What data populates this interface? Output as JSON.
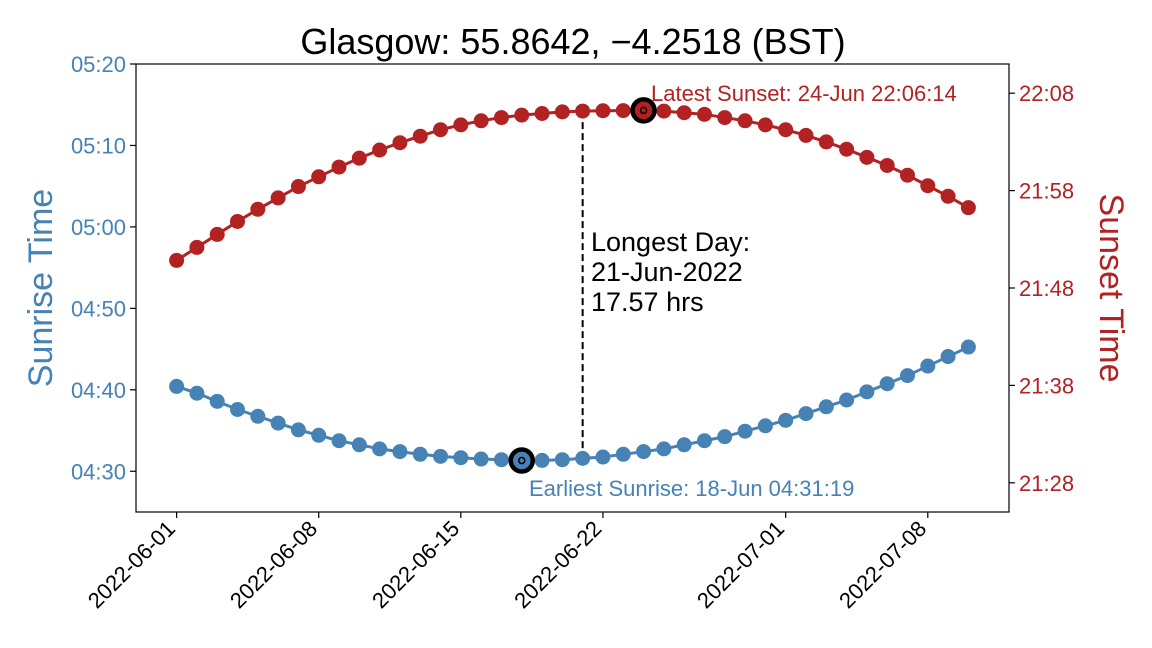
{
  "chart_data": {
    "type": "line",
    "title": "Glasgow: 55.8642, −4.2518 (BST)",
    "ylabel_left": "Sunrise Time",
    "ylabel_right": "Sunset Time",
    "x_ticks": [
      "2022-06-01",
      "2022-06-08",
      "2022-06-15",
      "2022-06-22",
      "2022-07-01",
      "2022-07-08"
    ],
    "y_left_ticks": [
      "04:30",
      "04:40",
      "04:50",
      "05:00",
      "05:10",
      "05:20"
    ],
    "y_right_ticks": [
      "21:28",
      "21:38",
      "21:48",
      "21:58",
      "22:08"
    ],
    "y_left_range": [
      "04:25",
      "05:20"
    ],
    "y_right_range": [
      "21:25",
      "22:11"
    ],
    "x_range": [
      "2022-05-30",
      "2022-07-12"
    ],
    "grid": false,
    "colors": {
      "sunrise": "#4682b4",
      "sunset": "#b22222",
      "text": "#000000"
    },
    "x": [
      "2022-06-01",
      "2022-06-02",
      "2022-06-03",
      "2022-06-04",
      "2022-06-05",
      "2022-06-06",
      "2022-06-07",
      "2022-06-08",
      "2022-06-09",
      "2022-06-10",
      "2022-06-11",
      "2022-06-12",
      "2022-06-13",
      "2022-06-14",
      "2022-06-15",
      "2022-06-16",
      "2022-06-17",
      "2022-06-18",
      "2022-06-19",
      "2022-06-20",
      "2022-06-21",
      "2022-06-22",
      "2022-06-23",
      "2022-06-24",
      "2022-06-25",
      "2022-06-26",
      "2022-06-27",
      "2022-06-28",
      "2022-06-29",
      "2022-06-30",
      "2022-07-01",
      "2022-07-02",
      "2022-07-03",
      "2022-07-04",
      "2022-07-05",
      "2022-07-06",
      "2022-07-07",
      "2022-07-08",
      "2022-07-09",
      "2022-07-10"
    ],
    "series": [
      {
        "name": "Sunrise Time",
        "axis": "left",
        "values": [
          "04:40:25",
          "04:39:35",
          "04:38:35",
          "04:37:35",
          "04:36:45",
          "04:35:55",
          "04:35:05",
          "04:34:25",
          "04:33:45",
          "04:33:15",
          "04:32:45",
          "04:32:25",
          "04:32:05",
          "04:31:50",
          "04:31:40",
          "04:31:30",
          "04:31:25",
          "04:31:19",
          "04:31:20",
          "04:31:25",
          "04:31:35",
          "04:31:45",
          "04:32:05",
          "04:32:25",
          "04:32:45",
          "04:33:15",
          "04:33:45",
          "04:34:15",
          "04:34:55",
          "04:35:35",
          "04:36:15",
          "04:37:05",
          "04:37:55",
          "04:38:45",
          "04:39:45",
          "04:40:45",
          "04:41:45",
          "04:42:55",
          "04:44:05",
          "04:45:15"
        ]
      },
      {
        "name": "Sunset Time",
        "axis": "right",
        "values": [
          "21:50:50",
          "21:52:10",
          "21:53:30",
          "21:54:50",
          "21:56:05",
          "21:57:15",
          "21:58:25",
          "21:59:25",
          "22:00:25",
          "22:01:20",
          "22:02:10",
          "22:02:55",
          "22:03:35",
          "22:04:15",
          "22:04:45",
          "22:05:10",
          "22:05:30",
          "22:05:45",
          "22:05:55",
          "22:06:05",
          "22:06:10",
          "22:06:12",
          "22:06:13",
          "22:06:14",
          "22:06:10",
          "22:06:00",
          "22:05:50",
          "22:05:30",
          "22:05:10",
          "22:04:45",
          "22:04:15",
          "22:03:40",
          "22:03:00",
          "22:02:15",
          "22:01:25",
          "22:00:35",
          "21:59:35",
          "21:58:30",
          "21:57:25",
          "21:56:15"
        ]
      }
    ],
    "highlights": [
      {
        "series": "Sunrise Time",
        "x": "2022-06-18",
        "y": "04:31:19"
      },
      {
        "series": "Sunset Time",
        "x": "2022-06-24",
        "y": "22:06:14"
      }
    ],
    "vline": {
      "x": "2022-06-21"
    },
    "annotations": {
      "earliest_sunrise": "Earliest Sunrise:  18-Jun 04:31:19",
      "latest_sunset": "Latest Sunset: 24-Jun 22:06:14",
      "longest_day_lines": [
        "Longest Day:",
        "21-Jun-2022",
        "17.57 hrs"
      ]
    }
  }
}
